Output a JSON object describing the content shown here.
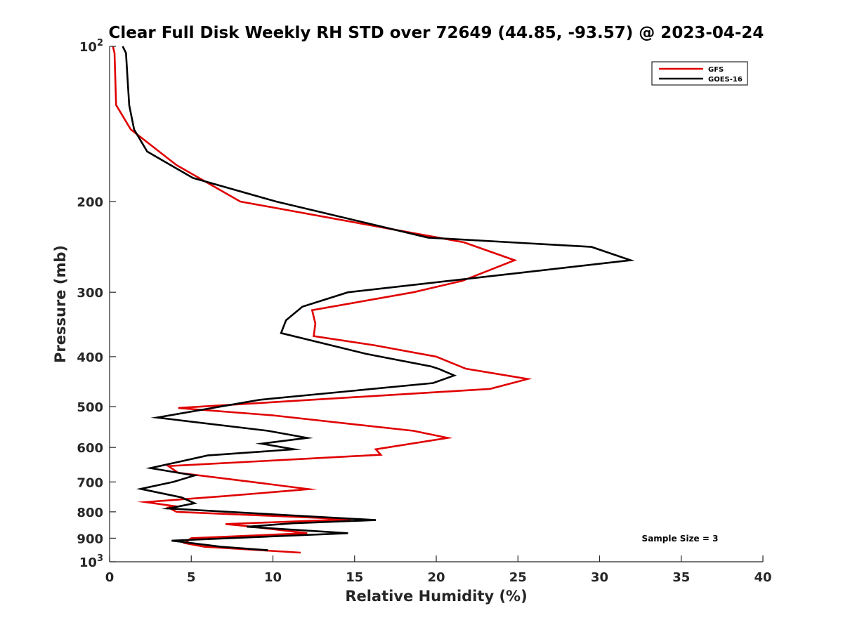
{
  "chart_data": {
    "type": "line",
    "title": "Clear Full Disk Weekly RH STD over 72649 (44.85, -93.57) @ 2023-04-24",
    "xlabel": "Relative Humidity (%)",
    "ylabel": "Pressure (mb)",
    "xlim": [
      0,
      40
    ],
    "ylim": [
      100,
      1000
    ],
    "y_scale": "log",
    "y_reversed": true,
    "grid": false,
    "legend_position": "top-right",
    "x_ticks": [
      0,
      5,
      10,
      15,
      20,
      25,
      30,
      35,
      40
    ],
    "x_tick_labels": [
      "0",
      "5",
      "10",
      "15",
      "20",
      "25",
      "30",
      "35",
      "40"
    ],
    "y_ticks": [
      100,
      200,
      300,
      400,
      500,
      600,
      700,
      800,
      900,
      1000
    ],
    "y_tick_labels": [
      {
        "base": "10",
        "exp": "2"
      },
      {
        "base": "200",
        "exp": ""
      },
      {
        "base": "300",
        "exp": ""
      },
      {
        "base": "400",
        "exp": ""
      },
      {
        "base": "500",
        "exp": ""
      },
      {
        "base": "600",
        "exp": ""
      },
      {
        "base": "700",
        "exp": ""
      },
      {
        "base": "800",
        "exp": ""
      },
      {
        "base": "900",
        "exp": ""
      },
      {
        "base": "10",
        "exp": "3"
      }
    ],
    "annotation": "Sample Size = 3",
    "series": [
      {
        "name": "GFS",
        "color": "#e00000",
        "x": [
          0.2,
          0.3,
          0.4,
          1.3,
          4.1,
          8.0,
          21.7,
          24.8,
          21.6,
          18.6,
          12.4,
          12.6,
          12.5,
          16.2,
          20.0,
          21.8,
          25.6,
          23.3,
          4.2,
          10.0,
          18.6,
          20.7,
          16.3,
          16.6,
          3.6,
          4.2,
          9.5,
          12.2,
          7.0,
          2.2,
          4.0,
          3.6,
          4.1,
          14.8,
          7.1,
          8.3,
          12.1,
          5.0,
          4.6,
          5.8,
          11.7
        ],
        "y": [
          100,
          103,
          130,
          145,
          170,
          200,
          240,
          260,
          285,
          300,
          325,
          345,
          365,
          380,
          400,
          422,
          442,
          462,
          503,
          520,
          557,
          575,
          605,
          620,
          652,
          672,
          705,
          723,
          746,
          766,
          780,
          785,
          800,
          827,
          845,
          852,
          880,
          900,
          920,
          935,
          960
        ]
      },
      {
        "name": "GOES-16",
        "color": "#000000",
        "x": [
          0.8,
          1.0,
          1.2,
          1.5,
          2.3,
          5.1,
          10.2,
          19.5,
          29.5,
          31.9,
          20.8,
          14.6,
          11.8,
          10.8,
          10.5,
          15.7,
          19.7,
          20.2,
          21.1,
          19.8,
          9.2,
          2.9,
          9.7,
          12.1,
          9.3,
          11.3,
          6.0,
          2.5,
          5.2,
          3.9,
          1.9,
          4.4,
          5.2,
          3.6,
          16.3,
          11.2,
          8.4,
          14.6,
          3.8,
          6.8,
          9.7
        ],
        "y": [
          100,
          103,
          130,
          145,
          160,
          180,
          200,
          235,
          245,
          260,
          285,
          300,
          320,
          340,
          360,
          395,
          418,
          423,
          435,
          450,
          485,
          525,
          557,
          575,
          590,
          605,
          622,
          658,
          680,
          700,
          722,
          750,
          770,
          788,
          830,
          842,
          855,
          880,
          910,
          935,
          950
        ]
      }
    ]
  }
}
